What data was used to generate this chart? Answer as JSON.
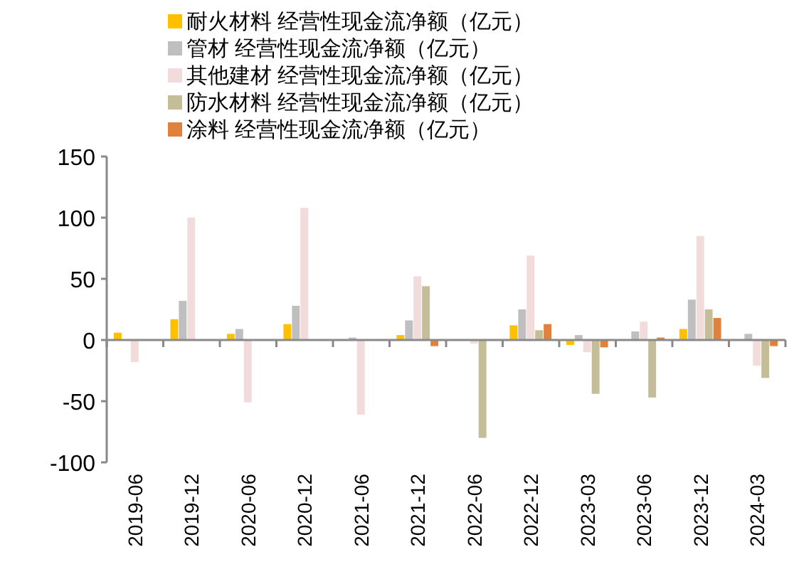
{
  "chart_data": {
    "type": "bar",
    "categories": [
      "2019-06",
      "2019-12",
      "2020-06",
      "2020-12",
      "2021-06",
      "2021-12",
      "2022-06",
      "2022-12",
      "2023-03",
      "2023-06",
      "2023-12",
      "2024-03"
    ],
    "series": [
      {
        "name": "耐火材料 经营性现金流净额（亿元）",
        "color": "#ffc000",
        "values": [
          6,
          17,
          5,
          13,
          0,
          4,
          0,
          12,
          -4,
          0,
          9,
          null
        ]
      },
      {
        "name": "管材 经营性现金流净额（亿元）",
        "color": "#bfbfbf",
        "values": [
          null,
          32,
          9,
          28,
          2,
          16,
          null,
          25,
          4,
          7,
          33,
          5
        ]
      },
      {
        "name": "其他建材 经营性现金流净额（亿元）",
        "color": "#f2dcdb",
        "values": [
          -18,
          100,
          -51,
          108,
          -61,
          52,
          -3,
          69,
          -10,
          15,
          85,
          -21
        ]
      },
      {
        "name": "防水材料 经营性现金流净额（亿元）",
        "color": "#c4bd97",
        "values": [
          null,
          null,
          null,
          null,
          null,
          44,
          -80,
          8,
          -44,
          -47,
          25,
          -31
        ]
      },
      {
        "name": "涂料 经营性现金流净额（亿元）",
        "color": "#e0823d",
        "values": [
          null,
          null,
          null,
          null,
          null,
          -5,
          null,
          13,
          -6,
          2,
          18,
          -5
        ]
      }
    ],
    "ylim": [
      -100,
      150
    ],
    "yticks": [
      -100,
      -50,
      0,
      50,
      100,
      150
    ],
    "legend": "top"
  }
}
